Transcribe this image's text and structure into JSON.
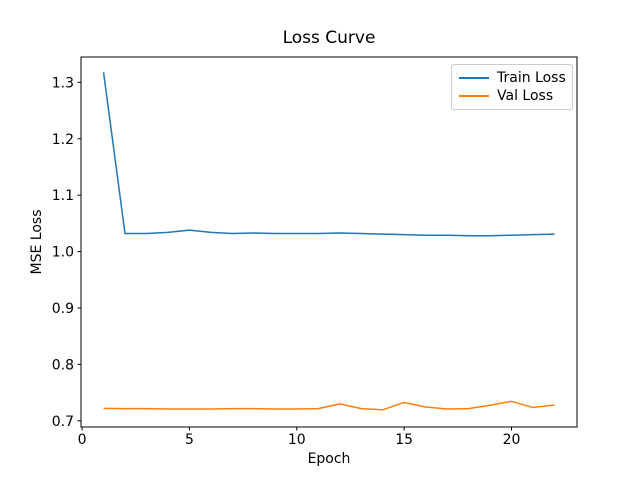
{
  "chart_data": {
    "type": "line",
    "title": "Loss Curve",
    "xlabel": "Epoch",
    "ylabel": "MSE Loss",
    "x": [
      1,
      2,
      3,
      4,
      5,
      6,
      7,
      8,
      9,
      10,
      11,
      12,
      13,
      14,
      15,
      16,
      17,
      18,
      19,
      20,
      21,
      22
    ],
    "series": [
      {
        "name": "Train Loss",
        "color": "#1f77b4",
        "values": [
          1.318,
          1.032,
          1.032,
          1.034,
          1.038,
          1.034,
          1.032,
          1.033,
          1.032,
          1.032,
          1.032,
          1.033,
          1.032,
          1.031,
          1.03,
          1.029,
          1.029,
          1.028,
          1.028,
          1.029,
          1.03,
          1.031
        ]
      },
      {
        "name": "Val Loss",
        "color": "#ff7f0e",
        "values": [
          0.722,
          0.7215,
          0.7215,
          0.721,
          0.721,
          0.721,
          0.7215,
          0.7215,
          0.721,
          0.721,
          0.7215,
          0.73,
          0.7215,
          0.7195,
          0.7325,
          0.7245,
          0.721,
          0.7215,
          0.7275,
          0.7345,
          0.7235,
          0.728
        ]
      }
    ],
    "xticks": [
      0,
      5,
      10,
      15,
      20
    ],
    "xtick_labels": [
      "0",
      "5",
      "10",
      "15",
      "20"
    ],
    "yticks": [
      0.7,
      0.8,
      0.9,
      1.0,
      1.1,
      1.2,
      1.3
    ],
    "ytick_labels": [
      "0.7",
      "0.8",
      "0.9",
      "1.0",
      "1.1",
      "1.2",
      "1.3"
    ],
    "xlim": [
      -0.05,
      23.05
    ],
    "ylim": [
      0.689,
      1.345
    ],
    "grid": false,
    "legend_position": "upper right",
    "colors": {
      "background": "#ffffff",
      "spine": "#000000",
      "tick_label": "#000000",
      "legend_border": "#cccccc"
    }
  }
}
